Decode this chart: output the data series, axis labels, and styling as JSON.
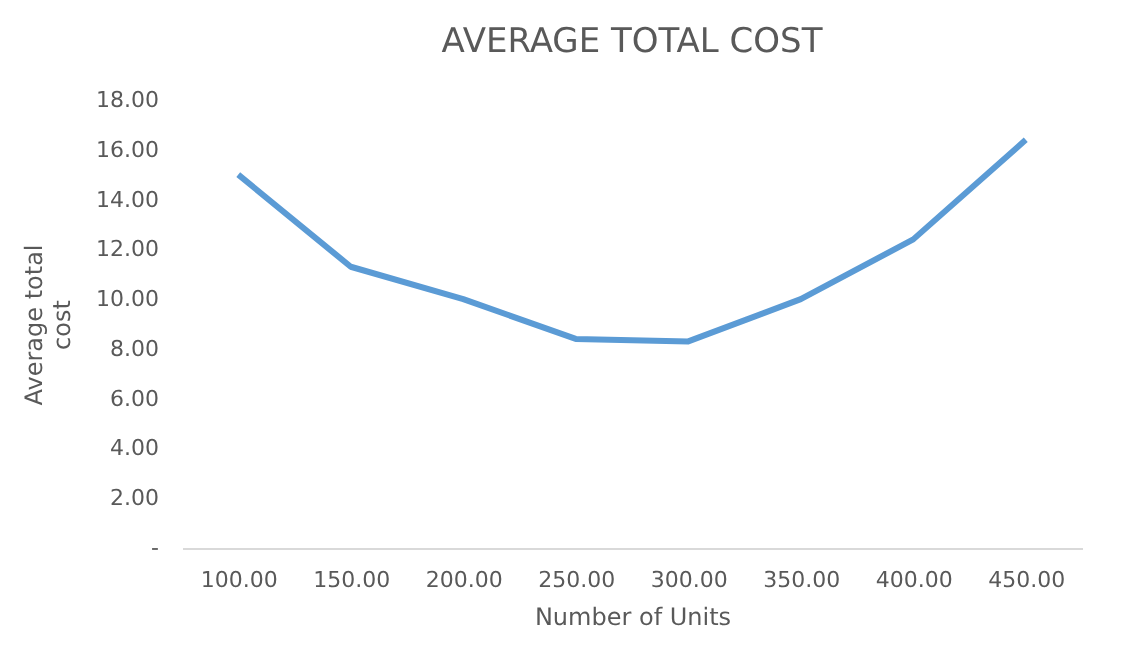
{
  "chart_data": {
    "type": "line",
    "title": "AVERAGE TOTAL COST",
    "xlabel": "Number of Units",
    "ylabel": "Average total cost",
    "categories": [
      "100.00",
      "150.00",
      "200.00",
      "250.00",
      "300.00",
      "350.00",
      "400.00",
      "450.00"
    ],
    "series": [
      {
        "color": "#5b9bd5",
        "values": [
          15.0,
          11.3,
          10.0,
          8.4,
          8.3,
          10.0,
          12.4,
          16.4
        ]
      }
    ],
    "ylim": [
      0,
      18
    ],
    "yticks": [
      {
        "value": 0,
        "label": "-"
      },
      {
        "value": 2,
        "label": "2.00"
      },
      {
        "value": 4,
        "label": "4.00"
      },
      {
        "value": 6,
        "label": "6.00"
      },
      {
        "value": 8,
        "label": "8.00"
      },
      {
        "value": 10,
        "label": "10.00"
      },
      {
        "value": 12,
        "label": "12.00"
      },
      {
        "value": 14,
        "label": "14.00"
      },
      {
        "value": 16,
        "label": "16.00"
      },
      {
        "value": 18,
        "label": "18.00"
      }
    ],
    "grid": false,
    "line_style": "solid",
    "marker": "none"
  }
}
